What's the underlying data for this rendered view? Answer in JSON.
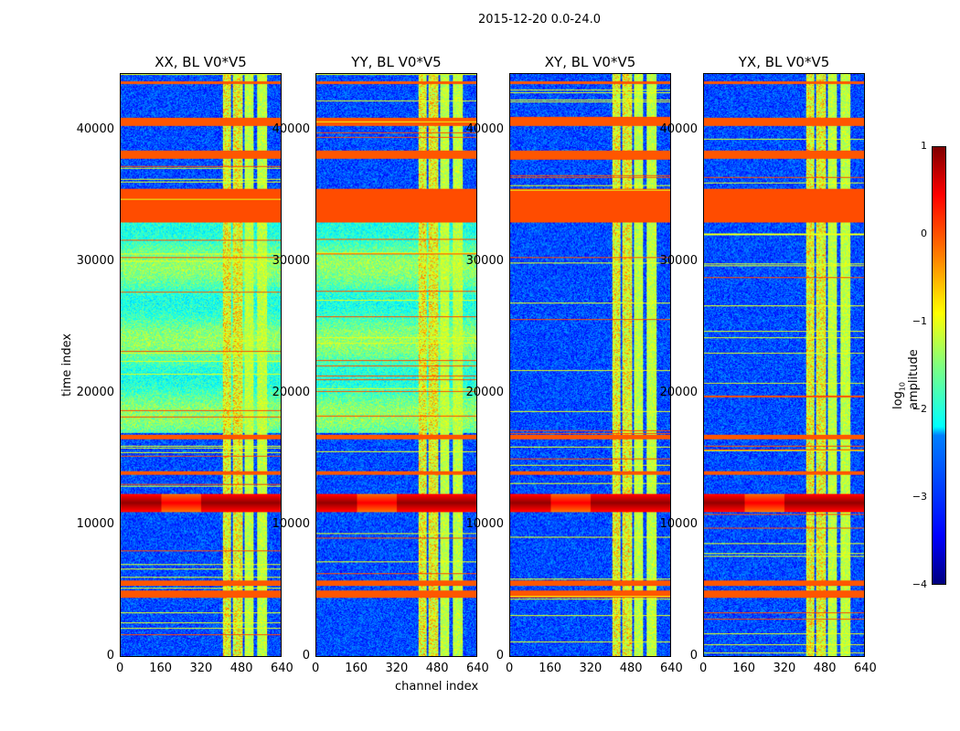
{
  "chart_data": {
    "type": "heatmap",
    "title": "2015-12-20 0.0-24.0",
    "panels": [
      {
        "title": "XX, BL V0*V5"
      },
      {
        "title": "YY, BL V0*V5"
      },
      {
        "title": "XY, BL V0*V5"
      },
      {
        "title": "YX, BL V0*V5"
      }
    ],
    "xlabel": "channel index",
    "ylabel": "time index",
    "xlim": [
      0,
      640
    ],
    "ylim": [
      0,
      44300
    ],
    "xticks": [
      "0",
      "160",
      "320",
      "480",
      "640"
    ],
    "yticks": [
      "0",
      "10000",
      "20000",
      "30000",
      "40000"
    ],
    "colorbar": {
      "label": "log10 amplitude",
      "label_main": "log",
      "label_sub": "10",
      "label_rest": " amplitude",
      "range": [
        -4,
        1
      ],
      "ticks": [
        "1",
        "0",
        "−1",
        "−2",
        "−3",
        "−4"
      ],
      "colormap": "jet"
    }
  }
}
